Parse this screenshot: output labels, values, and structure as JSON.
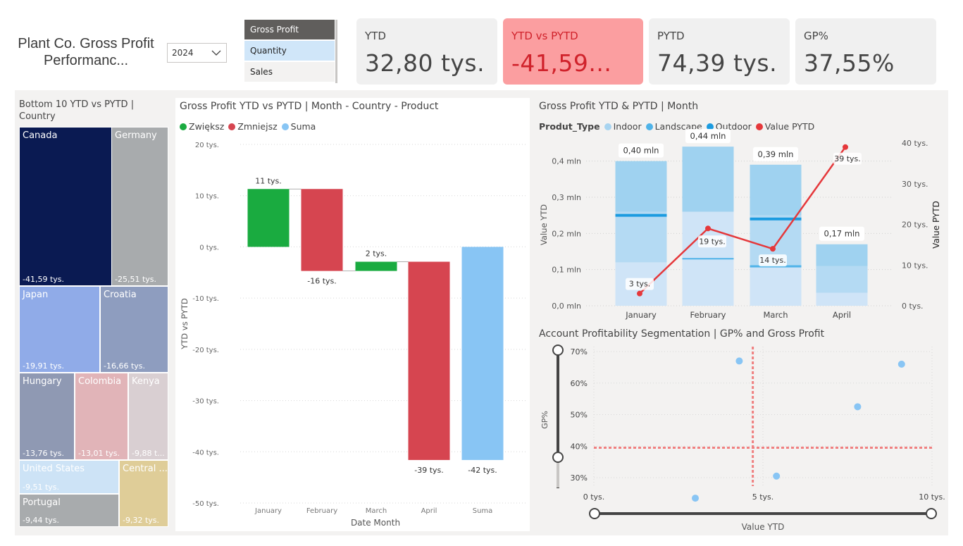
{
  "header": {
    "title": "Plant Co. Gross Profit Performanc...",
    "year": "2024",
    "metric_options": [
      {
        "label": "Gross Profit",
        "state": "selected"
      },
      {
        "label": "Quantity",
        "state": "hover"
      },
      {
        "label": "Sales",
        "state": "normal"
      }
    ]
  },
  "kpis": [
    {
      "label": "YTD",
      "value": "32,80 tys."
    },
    {
      "label": "YTD vs PYTD",
      "value": "-41,59..."
    },
    {
      "label": "PYTD",
      "value": "74,39 tys."
    },
    {
      "label": "GP%",
      "value": "37,55%"
    }
  ],
  "colors": {
    "kpi_alert_bg": "#fb9ea0",
    "kpi_alert_text": "#d0222b",
    "increase": "#1aab40",
    "decrease": "#d64550",
    "total": "#88c5f4",
    "indoor": "#cfe4f7",
    "landscape": "#a8d4f0",
    "outdoor": "#1b9be0",
    "pytd_line": "#e5383b"
  },
  "treemap": {
    "title": "Bottom 10 YTD vs PYTD | Country",
    "cells": [
      {
        "name": "Canada",
        "value": "-41,59 tys.",
        "color": "#0a1a52",
        "text": "#ffffff"
      },
      {
        "name": "Germany",
        "value": "-25,51 tys.",
        "color": "#a8abad",
        "text": "#ffffff"
      },
      {
        "name": "Japan",
        "value": "-19,91 tys.",
        "color": "#90abe8",
        "text": "#ffffff"
      },
      {
        "name": "Croatia",
        "value": "-16,66 tys.",
        "color": "#8e9dbf",
        "text": "#ffffff"
      },
      {
        "name": "Hungary",
        "value": "-13,76 tys.",
        "color": "#8f99b3",
        "text": "#ffffff"
      },
      {
        "name": "Colombia",
        "value": "-13,01 tys.",
        "color": "#e1b4b8",
        "text": "#ffffff"
      },
      {
        "name": "Kenya",
        "value": "-9,88 t...",
        "color": "#d9cfd2",
        "text": "#ffffff"
      },
      {
        "name": "United States",
        "value": "-9,51 tys.",
        "color": "#cde3f6",
        "text": "#ffffff"
      },
      {
        "name": "Central ...",
        "value": "-9,32 tys.",
        "color": "#dfcd98",
        "text": "#ffffff"
      },
      {
        "name": "Portugal",
        "value": "-9,44 tys.",
        "color": "#a8abad",
        "text": "#ffffff"
      }
    ]
  },
  "waterfall": {
    "title": "Gross Profit YTD vs PYTD | Month - Country - Product",
    "legend": [
      "Zwiększ",
      "Zmniejsz",
      "Suma"
    ],
    "ylabel": "YTD vs PYTD",
    "xlabel": "Date Month",
    "y_ticks": [
      "20 tys.",
      "10 tys.",
      "0 tys.",
      "-10 tys.",
      "-20 tys.",
      "-30 tys.",
      "-40 tys.",
      "-50 tys."
    ]
  },
  "combo": {
    "title": "Gross Profit YTD & PYTD | Month",
    "legend_title": "Produt_Type",
    "legend": [
      "Indoor",
      "Landscape",
      "Outdoor",
      "Value PYTD"
    ],
    "ylabel_left": "Value YTD",
    "ylabel_right": "Value PYTD",
    "y_left_ticks": [
      "0,4 mln",
      "0,3 mln",
      "0,2 mln",
      "0,1 mln",
      "0,0 mln"
    ],
    "y_right_ticks": [
      "40 tys.",
      "30 tys.",
      "20 tys.",
      "10 tys.",
      "0 tys."
    ]
  },
  "scatter": {
    "title": "Account Profitability Segmentation | GP% and Gross Profit",
    "ylabel": "GP%",
    "xlabel": "Value YTD",
    "y_ticks": [
      "70%",
      "60%",
      "50%",
      "40%",
      "30%"
    ],
    "x_ticks": [
      "0 tys.",
      "5 tys.",
      "10 tys."
    ]
  },
  "chart_data": [
    {
      "type": "bar",
      "title": "Gross Profit YTD vs PYTD | Month - Country - Product",
      "subtype": "waterfall",
      "categories": [
        "January",
        "February",
        "March",
        "April",
        "Suma"
      ],
      "values": [
        11.3,
        -16.0,
        1.8,
        -38.7,
        -41.6
      ],
      "data_labels": [
        "11 tys.",
        "-16 tys.",
        "2 tys.",
        "-39 tys.",
        "-42 tys."
      ],
      "kinds": [
        "increase",
        "decrease",
        "increase",
        "decrease",
        "total"
      ],
      "ylabel": "YTD vs PYTD",
      "xlabel": "Date Month",
      "ylim": [
        -50,
        20
      ],
      "grid": true,
      "legend_position": "top-left"
    },
    {
      "type": "bar",
      "subtype": "stacked-bar-with-line",
      "title": "Gross Profit YTD & PYTD | Month",
      "categories": [
        "January",
        "February",
        "March",
        "April"
      ],
      "series": [
        {
          "name": "Indoor",
          "values": [
            0.12,
            0.26,
            0.11,
            0.036
          ]
        },
        {
          "name": "Landscape",
          "values": [
            0.14,
            0.0,
            0.14,
            0.074
          ]
        },
        {
          "name": "Outdoor",
          "values": [
            0.14,
            0.18,
            0.14,
            0.06
          ]
        }
      ],
      "totals_labels": [
        "0,40 mln",
        "0,44 mln",
        "0,39 mln",
        "0,17 mln"
      ],
      "totals": [
        0.4,
        0.44,
        0.39,
        0.17
      ],
      "line": {
        "name": "Value PYTD",
        "values": [
          3,
          19,
          14,
          39
        ],
        "labels": [
          "3 tys.",
          "19 tys.",
          "14 tys.",
          "39 tys."
        ]
      },
      "ylabel": "Value YTD",
      "ylabel_right": "Value PYTD",
      "ylim": [
        0,
        0.45
      ],
      "ylim_right": [
        0,
        40
      ],
      "grid": true,
      "legend_position": "top-left"
    },
    {
      "type": "scatter",
      "title": "Account Profitability Segmentation | GP% and Gross Profit",
      "x": [
        4.3,
        9.1,
        7.8,
        5.4,
        3.0
      ],
      "y": [
        67,
        66,
        52.5,
        30.5,
        23.5
      ],
      "xlabel": "Value YTD",
      "ylabel": "GP%",
      "xlim": [
        0,
        10
      ],
      "ylim": [
        25,
        72
      ],
      "reference_lines": {
        "x": 4.7,
        "y": 39.5
      },
      "grid": true
    }
  ]
}
